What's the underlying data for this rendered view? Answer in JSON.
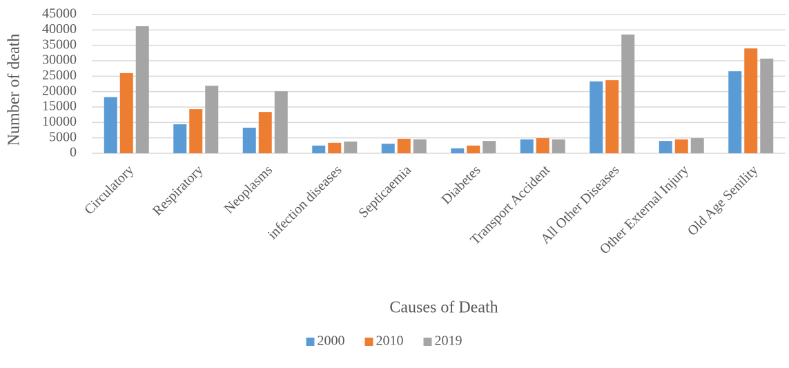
{
  "chart_data": {
    "type": "bar",
    "x_label": "Causes of Death",
    "y_label": "Number of death",
    "categories": [
      "Circulatory",
      "Respiratory",
      "Neoplasms",
      "infection diseases",
      "Septicaemia",
      "Diabetes",
      "Transport Accident",
      "All Other Diseases",
      "Other External Injury",
      "Old Age Senility"
    ],
    "series": [
      {
        "name": "2000",
        "color": "#5b9bd5",
        "values": [
          18200,
          9400,
          8300,
          2500,
          3100,
          1600,
          4500,
          23300,
          4000,
          26600
        ]
      },
      {
        "name": "2010",
        "color": "#ed7d31",
        "values": [
          26000,
          14300,
          13400,
          3400,
          4700,
          2500,
          4900,
          23700,
          4500,
          34000
        ]
      },
      {
        "name": "2019",
        "color": "#a5a5a5",
        "values": [
          41200,
          21900,
          20100,
          3800,
          4500,
          4000,
          4500,
          38500,
          4900,
          30700
        ]
      }
    ],
    "ylim": [
      0,
      45000
    ],
    "yticks": [
      0,
      5000,
      10000,
      15000,
      20000,
      25000,
      30000,
      35000,
      40000,
      45000
    ],
    "grid": true,
    "legend": "bottom"
  }
}
